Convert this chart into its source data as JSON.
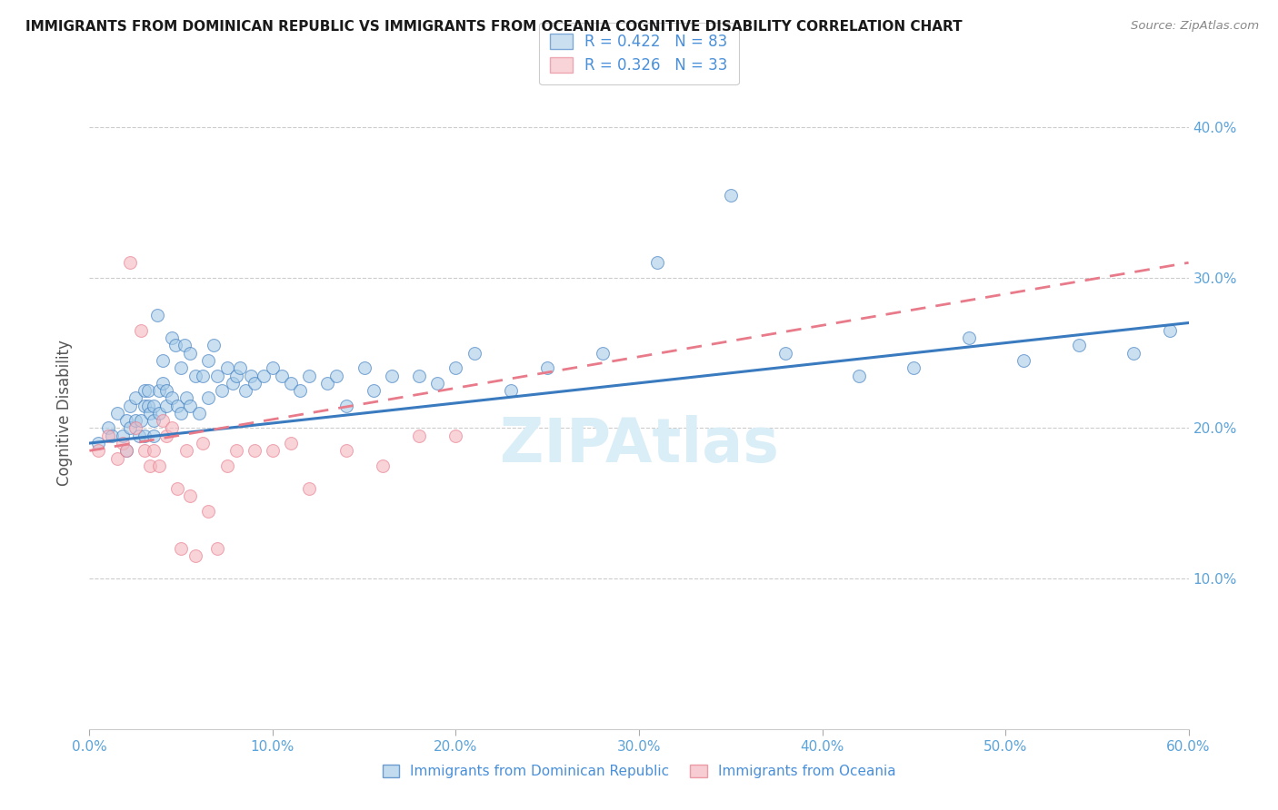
{
  "title": "IMMIGRANTS FROM DOMINICAN REPUBLIC VS IMMIGRANTS FROM OCEANIA COGNITIVE DISABILITY CORRELATION CHART",
  "source": "Source: ZipAtlas.com",
  "xlabel_blue": "Immigrants from Dominican Republic",
  "xlabel_pink": "Immigrants from Oceania",
  "ylabel": "Cognitive Disability",
  "x_min": 0.0,
  "x_max": 0.6,
  "y_min": 0.0,
  "y_max": 0.42,
  "yticks": [
    0.1,
    0.2,
    0.3,
    0.4
  ],
  "xticks": [
    0.0,
    0.1,
    0.2,
    0.3,
    0.4,
    0.5,
    0.6
  ],
  "R_blue": 0.422,
  "N_blue": 83,
  "R_pink": 0.326,
  "N_pink": 33,
  "blue_color": "#a8cce8",
  "pink_color": "#f4b8c1",
  "line_blue": "#3a7abf",
  "line_pink": "#e87a8a",
  "label_color": "#4a90d9",
  "tick_color": "#5ba3d9",
  "watermark_color": "#daeef8",
  "blue_scatter_x": [
    0.005,
    0.01,
    0.012,
    0.015,
    0.018,
    0.02,
    0.02,
    0.022,
    0.022,
    0.025,
    0.025,
    0.027,
    0.028,
    0.03,
    0.03,
    0.03,
    0.032,
    0.032,
    0.033,
    0.035,
    0.035,
    0.035,
    0.037,
    0.038,
    0.038,
    0.04,
    0.04,
    0.042,
    0.042,
    0.045,
    0.045,
    0.047,
    0.048,
    0.05,
    0.05,
    0.052,
    0.053,
    0.055,
    0.055,
    0.058,
    0.06,
    0.062,
    0.065,
    0.065,
    0.068,
    0.07,
    0.072,
    0.075,
    0.078,
    0.08,
    0.082,
    0.085,
    0.088,
    0.09,
    0.095,
    0.1,
    0.105,
    0.11,
    0.115,
    0.12,
    0.13,
    0.135,
    0.14,
    0.15,
    0.155,
    0.165,
    0.18,
    0.19,
    0.2,
    0.21,
    0.23,
    0.25,
    0.28,
    0.31,
    0.35,
    0.38,
    0.42,
    0.45,
    0.48,
    0.51,
    0.54,
    0.57,
    0.59
  ],
  "blue_scatter_y": [
    0.19,
    0.2,
    0.195,
    0.21,
    0.195,
    0.205,
    0.185,
    0.215,
    0.2,
    0.205,
    0.22,
    0.195,
    0.205,
    0.215,
    0.225,
    0.195,
    0.225,
    0.215,
    0.21,
    0.215,
    0.205,
    0.195,
    0.275,
    0.225,
    0.21,
    0.245,
    0.23,
    0.225,
    0.215,
    0.26,
    0.22,
    0.255,
    0.215,
    0.24,
    0.21,
    0.255,
    0.22,
    0.25,
    0.215,
    0.235,
    0.21,
    0.235,
    0.245,
    0.22,
    0.255,
    0.235,
    0.225,
    0.24,
    0.23,
    0.235,
    0.24,
    0.225,
    0.235,
    0.23,
    0.235,
    0.24,
    0.235,
    0.23,
    0.225,
    0.235,
    0.23,
    0.235,
    0.215,
    0.24,
    0.225,
    0.235,
    0.235,
    0.23,
    0.24,
    0.25,
    0.225,
    0.24,
    0.25,
    0.31,
    0.355,
    0.25,
    0.235,
    0.24,
    0.26,
    0.245,
    0.255,
    0.25,
    0.265
  ],
  "pink_scatter_x": [
    0.005,
    0.01,
    0.015,
    0.018,
    0.02,
    0.022,
    0.025,
    0.028,
    0.03,
    0.033,
    0.035,
    0.038,
    0.04,
    0.042,
    0.045,
    0.048,
    0.05,
    0.053,
    0.055,
    0.058,
    0.062,
    0.065,
    0.07,
    0.075,
    0.08,
    0.09,
    0.1,
    0.11,
    0.12,
    0.14,
    0.16,
    0.18,
    0.2
  ],
  "pink_scatter_y": [
    0.185,
    0.195,
    0.18,
    0.19,
    0.185,
    0.31,
    0.2,
    0.265,
    0.185,
    0.175,
    0.185,
    0.175,
    0.205,
    0.195,
    0.2,
    0.16,
    0.12,
    0.185,
    0.155,
    0.115,
    0.19,
    0.145,
    0.12,
    0.175,
    0.185,
    0.185,
    0.185,
    0.19,
    0.16,
    0.185,
    0.175,
    0.195,
    0.195
  ],
  "blue_line_start_x": 0.0,
  "blue_line_end_x": 0.6,
  "blue_line_start_y": 0.19,
  "blue_line_end_y": 0.27,
  "pink_line_start_x": 0.0,
  "pink_line_end_x": 0.6,
  "pink_line_start_y": 0.185,
  "pink_line_end_y": 0.31
}
